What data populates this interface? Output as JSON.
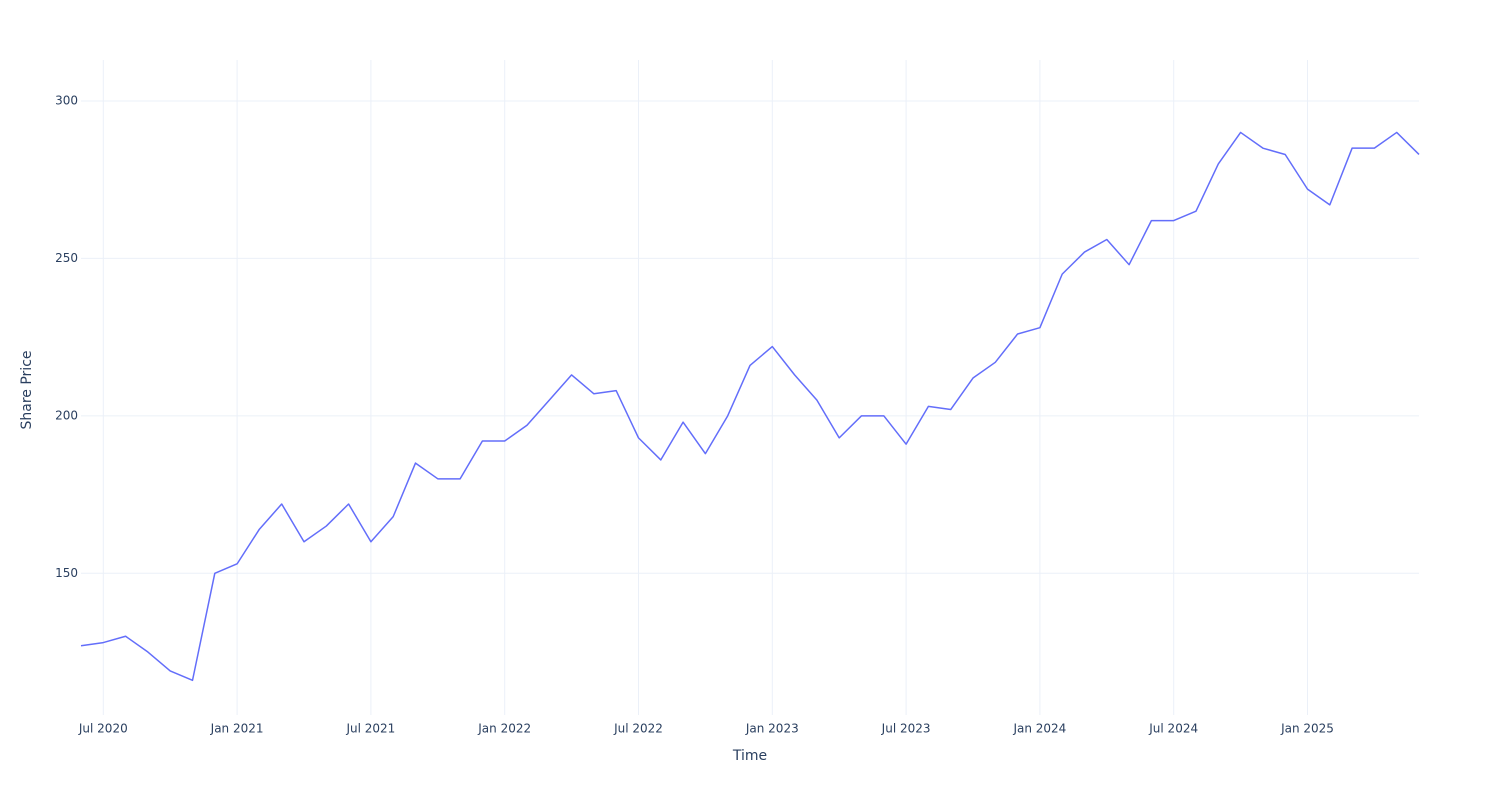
{
  "chart_data": {
    "type": "line",
    "xlabel": "Time",
    "ylabel": "Share Price",
    "x": [
      "2020-06",
      "2020-07",
      "2020-08",
      "2020-09",
      "2020-10",
      "2020-11",
      "2020-12",
      "2021-01",
      "2021-02",
      "2021-03",
      "2021-04",
      "2021-05",
      "2021-06",
      "2021-07",
      "2021-08",
      "2021-09",
      "2021-10",
      "2021-11",
      "2021-12",
      "2022-01",
      "2022-02",
      "2022-03",
      "2022-04",
      "2022-05",
      "2022-06",
      "2022-07",
      "2022-08",
      "2022-09",
      "2022-10",
      "2022-11",
      "2022-12",
      "2023-01",
      "2023-02",
      "2023-03",
      "2023-04",
      "2023-05",
      "2023-06",
      "2023-07",
      "2023-08",
      "2023-09",
      "2023-10",
      "2023-11",
      "2023-12",
      "2024-01",
      "2024-02",
      "2024-03",
      "2024-04",
      "2024-05",
      "2024-06",
      "2024-07",
      "2024-08",
      "2024-09",
      "2024-10",
      "2024-11",
      "2024-12",
      "2025-01",
      "2025-02",
      "2025-03",
      "2025-04",
      "2025-05",
      "2025-06"
    ],
    "series": [
      {
        "name": "Share Price",
        "color": "#636efa",
        "values": [
          127,
          128,
          130,
          125,
          119,
          116,
          150,
          153,
          164,
          172,
          160,
          165,
          172,
          160,
          168,
          185,
          180,
          180,
          192,
          192,
          197,
          205,
          213,
          207,
          208,
          193,
          186,
          198,
          188,
          200,
          216,
          222,
          213,
          205,
          193,
          200,
          200,
          191,
          203,
          202,
          212,
          217,
          226,
          228,
          245,
          252,
          256,
          248,
          262,
          262,
          265,
          280,
          290,
          285,
          283,
          272,
          267,
          285,
          285,
          290,
          283
        ]
      }
    ],
    "xlim": [
      "2020-06",
      "2025-06"
    ],
    "xticks": [
      {
        "value": "2020-07",
        "label": "Jul 2020"
      },
      {
        "value": "2021-01",
        "label": "Jan 2021"
      },
      {
        "value": "2021-07",
        "label": "Jul 2021"
      },
      {
        "value": "2022-01",
        "label": "Jan 2022"
      },
      {
        "value": "2022-07",
        "label": "Jul 2022"
      },
      {
        "value": "2023-01",
        "label": "Jan 2023"
      },
      {
        "value": "2023-07",
        "label": "Jul 2023"
      },
      {
        "value": "2024-01",
        "label": "Jan 2024"
      },
      {
        "value": "2024-07",
        "label": "Jul 2024"
      },
      {
        "value": "2025-01",
        "label": "Jan 2025"
      }
    ],
    "ylim": [
      105,
      313
    ],
    "yticks": [
      150,
      200,
      250,
      300
    ],
    "grid": true
  }
}
